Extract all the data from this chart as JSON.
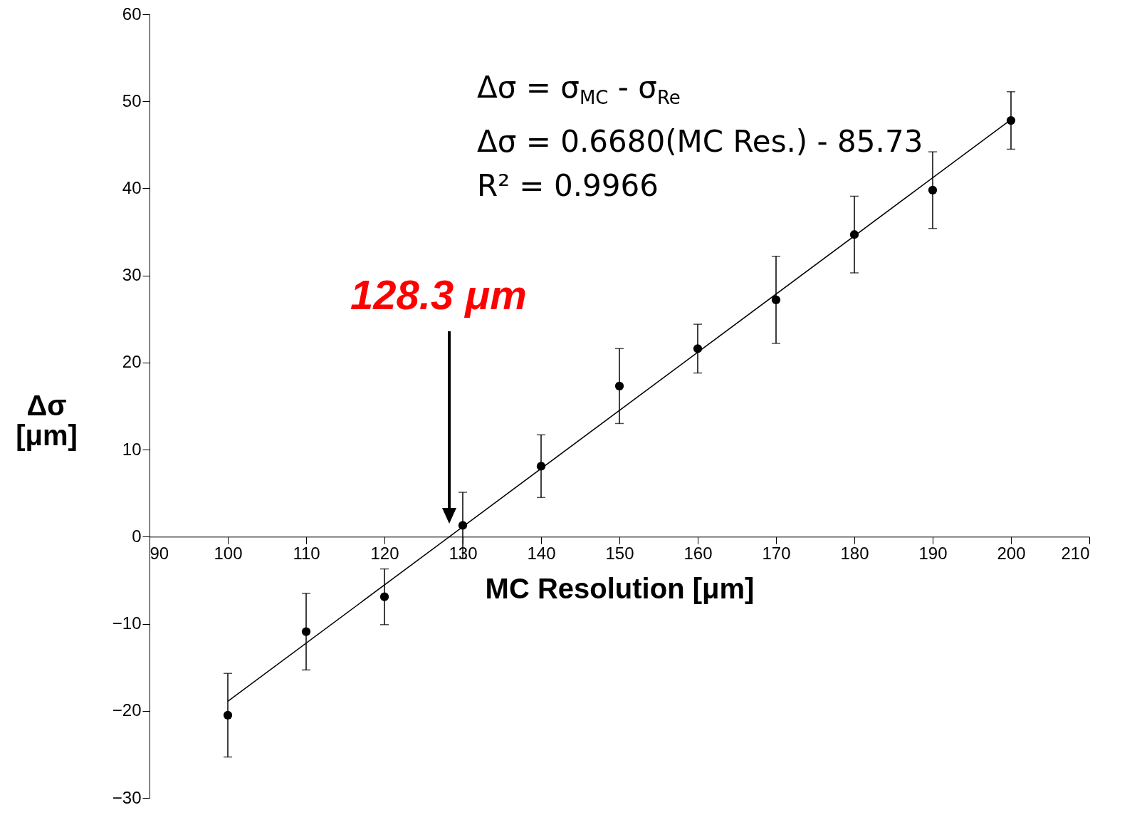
{
  "chart_data": {
    "type": "scatter",
    "xlabel": "MC Resolution [μm]",
    "ylabel": "Δσ [μm]",
    "x": [
      100,
      110,
      120,
      130,
      140,
      150,
      160,
      170,
      180,
      190,
      200
    ],
    "series": [
      {
        "color": "#000000",
        "marker": "circle",
        "values": [
          -20.5,
          -10.9,
          -6.9,
          1.3,
          8.1,
          17.3,
          21.6,
          27.2,
          34.7,
          39.8,
          47.8
        ],
        "errors": [
          4.8,
          4.4,
          3.2,
          3.8,
          3.6,
          4.3,
          2.8,
          5.0,
          4.4,
          4.4,
          3.3
        ]
      },
      {
        "type": "line",
        "color": "#000000",
        "x": [
          100,
          200
        ],
        "values": [
          -18.9,
          47.9
        ]
      }
    ],
    "xlim": [
      90,
      210
    ],
    "ylim": [
      -30,
      60
    ],
    "xticks": [
      90,
      100,
      110,
      120,
      130,
      140,
      150,
      160,
      170,
      180,
      190,
      200,
      210
    ],
    "yticks": [
      -30,
      -20,
      -10,
      0,
      10,
      20,
      30,
      40,
      50,
      60
    ],
    "annotations": [
      "Δσ = σ$_{MC}$ - σ$_{Re}$",
      "Δσ = 0.6680(MC Res.) - 85.73",
      "R² = 0.9966",
      "128.3 μm"
    ],
    "grid": false
  }
}
